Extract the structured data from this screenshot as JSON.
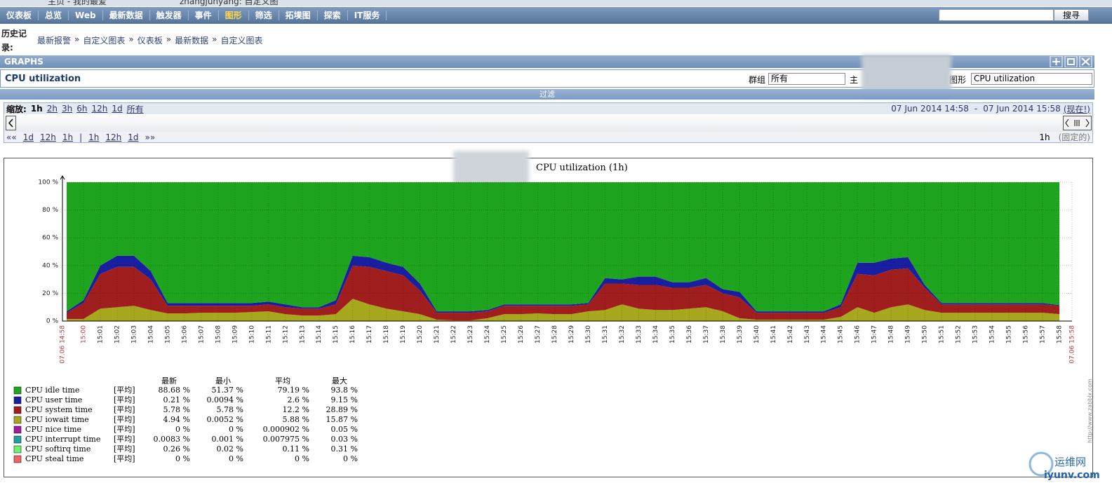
{
  "browser_tabs": [
    "主页 - 我的最爱",
    "zhangjunyang: 自定义图"
  ],
  "menu": [
    {
      "label": "仪表板"
    },
    {
      "label": "总览"
    },
    {
      "label": "Web"
    },
    {
      "label": "最新数据"
    },
    {
      "label": "触发器"
    },
    {
      "label": "事件"
    },
    {
      "label": "图形",
      "active": true
    },
    {
      "label": "筛选"
    },
    {
      "label": "拓墣图"
    },
    {
      "label": "探索"
    },
    {
      "label": "IT服务"
    }
  ],
  "search_button": "搜寻",
  "history_label": "历史记录:",
  "history": [
    "最新报警",
    "自定义图表",
    "仪表板",
    "最新数据",
    "自定义图表"
  ],
  "history_separator": "»",
  "section_title": "GRAPHS",
  "graph_name": "CPU utilization",
  "group_label": "群组",
  "group_value": "所有",
  "host_label": "主",
  "graph_label": "图形",
  "graph_value": "CPU utilization",
  "filter": "过滤",
  "zoom_label": "缩放:",
  "zoom": [
    {
      "label": "1h",
      "active": true
    },
    {
      "label": "2h"
    },
    {
      "label": "3h"
    },
    {
      "label": "6h"
    },
    {
      "label": "12h"
    },
    {
      "label": "1d"
    },
    {
      "label": "所有"
    }
  ],
  "period_from": "07 Jun 2014 14:58",
  "period_separator": "-",
  "period_to": "07 Jun 2014 15:58",
  "period_now": "(现在!)",
  "nav_back": [
    "««",
    "1d",
    "12h",
    "1h"
  ],
  "nav_separator": "|",
  "nav_forward": [
    "1h",
    "12h",
    "1d",
    "»»"
  ],
  "period_length": "1h",
  "period_fixed": "(固定的)",
  "chart_data": {
    "type": "area",
    "stacked": true,
    "title": "CPU utilization (1h)",
    "credit": "http://www.zabbix.com",
    "x": [
      59,
      60,
      61,
      62,
      63,
      64,
      65,
      66,
      67,
      68,
      69,
      70,
      71,
      72,
      73,
      74,
      75,
      76,
      77,
      78,
      79,
      80,
      81,
      82,
      83,
      84,
      85,
      86,
      87,
      88,
      89,
      90,
      91,
      92,
      93,
      94,
      95,
      96,
      97,
      98,
      99,
      100,
      101,
      102,
      103,
      104,
      105,
      106,
      107,
      108,
      109,
      110,
      111,
      112,
      113,
      114,
      115,
      116,
      117,
      118
    ],
    "xlim": [
      58.75,
      118.75
    ],
    "xticks": [
      {
        "value": 58.75,
        "label": "07.06 14:58",
        "color": "#b03a3a"
      },
      {
        "value": 60,
        "label": "15:00",
        "color": "#b03a3a"
      },
      {
        "value": 61,
        "label": "15:01"
      },
      {
        "value": 62,
        "label": "15:02"
      },
      {
        "value": 63,
        "label": "15:03"
      },
      {
        "value": 64,
        "label": "15:04"
      },
      {
        "value": 65,
        "label": "15:05"
      },
      {
        "value": 66,
        "label": "15:06"
      },
      {
        "value": 67,
        "label": "15:07"
      },
      {
        "value": 68,
        "label": "15:08"
      },
      {
        "value": 69,
        "label": "15:09"
      },
      {
        "value": 70,
        "label": "15:10"
      },
      {
        "value": 71,
        "label": "15:11"
      },
      {
        "value": 72,
        "label": "15:12"
      },
      {
        "value": 73,
        "label": "15:13"
      },
      {
        "value": 74,
        "label": "15:14"
      },
      {
        "value": 75,
        "label": "15:15"
      },
      {
        "value": 76,
        "label": "15:16"
      },
      {
        "value": 77,
        "label": "15:17"
      },
      {
        "value": 78,
        "label": "15:18"
      },
      {
        "value": 79,
        "label": "15:19"
      },
      {
        "value": 80,
        "label": "15:20"
      },
      {
        "value": 81,
        "label": "15:21"
      },
      {
        "value": 82,
        "label": "15:22"
      },
      {
        "value": 83,
        "label": "15:23"
      },
      {
        "value": 84,
        "label": "15:24"
      },
      {
        "value": 85,
        "label": "15:25"
      },
      {
        "value": 86,
        "label": "15:26"
      },
      {
        "value": 87,
        "label": "15:27"
      },
      {
        "value": 88,
        "label": "15:28"
      },
      {
        "value": 89,
        "label": "15:29"
      },
      {
        "value": 90,
        "label": "15:30"
      },
      {
        "value": 91,
        "label": "15:31"
      },
      {
        "value": 92,
        "label": "15:32"
      },
      {
        "value": 93,
        "label": "15:33"
      },
      {
        "value": 94,
        "label": "15:34"
      },
      {
        "value": 95,
        "label": "15:35"
      },
      {
        "value": 96,
        "label": "15:36"
      },
      {
        "value": 97,
        "label": "15:37"
      },
      {
        "value": 98,
        "label": "15:38"
      },
      {
        "value": 99,
        "label": "15:39"
      },
      {
        "value": 100,
        "label": "15:40"
      },
      {
        "value": 101,
        "label": "15:41"
      },
      {
        "value": 102,
        "label": "15:42"
      },
      {
        "value": 103,
        "label": "15:43"
      },
      {
        "value": 104,
        "label": "15:44"
      },
      {
        "value": 105,
        "label": "15:45"
      },
      {
        "value": 106,
        "label": "15:46"
      },
      {
        "value": 107,
        "label": "15:47"
      },
      {
        "value": 108,
        "label": "15:48"
      },
      {
        "value": 109,
        "label": "15:49"
      },
      {
        "value": 110,
        "label": "15:50"
      },
      {
        "value": 111,
        "label": "15:51"
      },
      {
        "value": 112,
        "label": "15:52"
      },
      {
        "value": 113,
        "label": "15:53"
      },
      {
        "value": 114,
        "label": "15:54"
      },
      {
        "value": 115,
        "label": "15:55"
      },
      {
        "value": 116,
        "label": "15:56"
      },
      {
        "value": 117,
        "label": "15:57"
      },
      {
        "value": 118,
        "label": "15:58"
      },
      {
        "value": 118.75,
        "label": "07.06 15:58",
        "color": "#b03a3a"
      }
    ],
    "ylim": [
      0,
      100
    ],
    "yticks": [
      {
        "value": 0,
        "label": "0 %"
      },
      {
        "value": 20,
        "label": "20 %"
      },
      {
        "value": 40,
        "label": "40 %"
      },
      {
        "value": 60,
        "label": "60 %"
      },
      {
        "value": 80,
        "label": "80 %"
      },
      {
        "value": 100,
        "label": "100 %"
      }
    ],
    "grid": true,
    "series": [
      {
        "name": "CPU idle time",
        "color": "#1ea41e",
        "values": [
          93,
          85,
          60,
          53,
          53,
          64,
          87,
          87,
          87,
          87,
          87,
          87,
          86,
          88,
          90,
          90,
          85,
          53,
          54,
          58,
          61,
          73,
          93,
          93,
          93,
          92,
          88,
          88,
          88,
          88,
          88,
          87,
          69,
          70,
          68,
          68,
          72,
          72,
          69,
          77,
          79,
          93,
          93,
          93,
          93,
          93,
          88,
          58,
          58,
          55,
          54,
          74,
          87,
          87,
          87,
          87,
          87,
          87,
          87,
          88.5
        ]
      },
      {
        "name": "CPU user time",
        "color": "#1a1ea0",
        "values": [
          1,
          2,
          6,
          8,
          8,
          6,
          2,
          2,
          2,
          2,
          2,
          2,
          2,
          2,
          1,
          1,
          3,
          7,
          7,
          6,
          6,
          5,
          1,
          1,
          1,
          1,
          1,
          1,
          1,
          1,
          1,
          1,
          4,
          3,
          6,
          6,
          4,
          4,
          5,
          3,
          4,
          1,
          1,
          1,
          1,
          1,
          2,
          8,
          9,
          8,
          8,
          2,
          1,
          1,
          1,
          1,
          1,
          1,
          1,
          0.5
        ]
      },
      {
        "name": "CPU system time",
        "color": "#a01e1e",
        "values": [
          4.5,
          11.5,
          25,
          29,
          28,
          22,
          5.5,
          5.5,
          5,
          5,
          5,
          4.5,
          5,
          5,
          5,
          5,
          7,
          24,
          27,
          27,
          26,
          17,
          5,
          5.5,
          5.5,
          5,
          6,
          6,
          5.5,
          6,
          6,
          5,
          19,
          15,
          17,
          18,
          16,
          15,
          16,
          13,
          15,
          5,
          5,
          5,
          5,
          5,
          7,
          24,
          27,
          27,
          26,
          16,
          6,
          6,
          6,
          6,
          6,
          6,
          6,
          6
        ]
      },
      {
        "name": "CPU iowait time",
        "color": "#a8a81e",
        "values": [
          1.5,
          1.5,
          9,
          10,
          11,
          8,
          5.5,
          5.5,
          6,
          6,
          6,
          6.5,
          7,
          5,
          4,
          4,
          5,
          16,
          12,
          9,
          7,
          5,
          1,
          0.5,
          0.5,
          2,
          5,
          5,
          5.5,
          5,
          5,
          7,
          8,
          12,
          9,
          8,
          8,
          9,
          10,
          7,
          2,
          1,
          1,
          1,
          1,
          1,
          3,
          10,
          6,
          10,
          12,
          8,
          6,
          6,
          6,
          6,
          6,
          6,
          6,
          5
        ]
      },
      {
        "name": "CPU nice time",
        "color": "#a01ea0",
        "values": [
          0,
          0,
          0,
          0,
          0,
          0,
          0,
          0,
          0,
          0,
          0,
          0,
          0,
          0,
          0,
          0,
          0,
          0,
          0,
          0,
          0,
          0,
          0,
          0,
          0,
          0,
          0,
          0,
          0,
          0,
          0,
          0,
          0,
          0,
          0,
          0,
          0,
          0,
          0,
          0,
          0,
          0,
          0,
          0,
          0,
          0,
          0,
          0,
          0,
          0,
          0,
          0,
          0,
          0,
          0,
          0,
          0,
          0,
          0,
          0
        ]
      },
      {
        "name": "CPU interrupt time",
        "color": "#1ea0a0",
        "values": [
          0,
          0,
          0,
          0,
          0,
          0,
          0,
          0,
          0,
          0,
          0,
          0,
          0,
          0,
          0,
          0,
          0,
          0,
          0,
          0,
          0,
          0,
          0,
          0,
          0,
          0,
          0,
          0,
          0,
          0,
          0,
          0,
          0,
          0,
          0,
          0,
          0,
          0,
          0,
          0,
          0,
          0,
          0,
          0,
          0,
          0,
          0,
          0,
          0,
          0,
          0,
          0,
          0,
          0,
          0,
          0,
          0,
          0,
          0,
          0
        ]
      },
      {
        "name": "CPU softirq time",
        "color": "#6ff06f",
        "values": [
          0,
          0,
          0,
          0,
          0,
          0,
          0,
          0,
          0,
          0,
          0,
          0,
          0,
          0,
          0,
          0,
          0,
          0,
          0,
          0,
          0,
          0,
          0,
          0,
          0,
          0,
          0,
          0,
          0,
          0,
          0,
          0,
          0,
          0,
          0,
          0,
          0,
          0,
          0,
          0,
          0,
          0,
          0,
          0,
          0,
          0,
          0,
          0,
          0,
          0,
          0,
          0,
          0,
          0,
          0,
          0,
          0,
          0,
          0,
          0
        ]
      },
      {
        "name": "CPU steal time",
        "color": "#f06464",
        "values": [
          0,
          0,
          0,
          0,
          0,
          0,
          0,
          0,
          0,
          0,
          0,
          0,
          0,
          0,
          0,
          0,
          0,
          0,
          0,
          0,
          0,
          0,
          0,
          0,
          0,
          0,
          0,
          0,
          0,
          0,
          0,
          0,
          0,
          0,
          0,
          0,
          0,
          0,
          0,
          0,
          0,
          0,
          0,
          0,
          0,
          0,
          0,
          0,
          0,
          0,
          0,
          0,
          0,
          0,
          0,
          0,
          0,
          0,
          0,
          0
        ]
      }
    ],
    "stats": {
      "headers": [
        "最新",
        "最小",
        "平均",
        "最大"
      ],
      "rows": [
        [
          "[平均]",
          "88.68 %",
          "51.37 %",
          "79.19 %",
          "93.8 %"
        ],
        [
          "[平均]",
          "0.21 %",
          "0.0094 %",
          "2.6 %",
          "9.15 %"
        ],
        [
          "[平均]",
          "5.78 %",
          "5.78 %",
          "12.2 %",
          "28.89 %"
        ],
        [
          "[平均]",
          "4.94 %",
          "0.0052 %",
          "5.88 %",
          "15.87 %"
        ],
        [
          "[平均]",
          "0 %",
          "0 %",
          "0.000902 %",
          "0.05 %"
        ],
        [
          "[平均]",
          "0.0083 %",
          "0.001 %",
          "0.007975 %",
          "0.03 %"
        ],
        [
          "[平均]",
          "0.26 %",
          "0.02 %",
          "0.11 %",
          "0.31 %"
        ],
        [
          "[平均]",
          "0 %",
          "0 %",
          "0 %",
          "0 %"
        ]
      ]
    }
  },
  "watermark": [
    "运维网",
    "iyunv.com"
  ]
}
